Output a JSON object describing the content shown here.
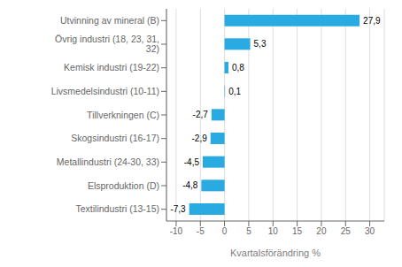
{
  "chart_data": {
    "type": "bar",
    "orientation": "horizontal",
    "categories": [
      "Textilindustri (13-15)",
      "Elsproduktion (D)",
      "Metallindustri (24-30, 33)",
      "Skogsindustri (16-17)",
      "Tillverkningen (C)",
      "Livsmedelsindustri (10-11)",
      "Kemisk industri (19-22)",
      "Övrig industri (18, 23, 31, 32)",
      "Utvinning av mineral (B)"
    ],
    "values": [
      -7.3,
      -4.8,
      -4.5,
      -2.9,
      -2.7,
      0.1,
      0.8,
      5.3,
      27.9
    ],
    "value_labels": [
      "-7,3",
      "-4,8",
      "-4,5",
      "-2,9",
      "-2,7",
      "0,1",
      "0,8",
      "5,3",
      "27,9"
    ],
    "color": "#29abe2",
    "xlabel": "Kvartalsförändring %",
    "xlim": [
      -12,
      33
    ],
    "xticks": [
      -10,
      -5,
      0,
      5,
      10,
      15,
      20,
      25,
      30
    ],
    "grid": true
  }
}
